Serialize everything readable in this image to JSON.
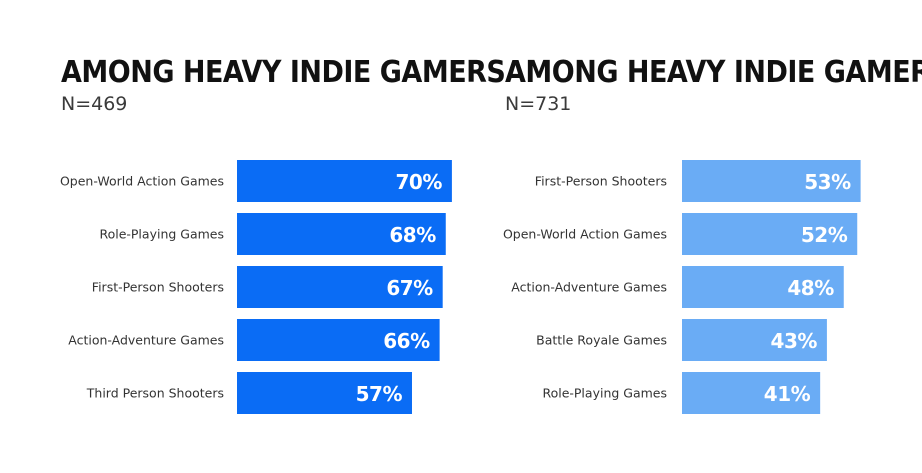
{
  "chart_data": [
    {
      "type": "bar",
      "orientation": "horizontal",
      "title": "AMONG HEAVY INDIE GAMERS",
      "subtitle": "N=469",
      "categories": [
        "Open-World Action Games",
        "Role-Playing Games",
        "First-Person Shooters",
        "Action-Adventure Games",
        "Third Person Shooters"
      ],
      "values": [
        70,
        68,
        67,
        66,
        57
      ],
      "value_labels": [
        "70%",
        "68%",
        "67%",
        "66%",
        "57%"
      ],
      "unit": "%",
      "color": "#0a6cf5",
      "grid": false
    },
    {
      "type": "bar",
      "orientation": "horizontal",
      "title": "AMONG HEAVY INDIE GAMERS",
      "subtitle": "N=731",
      "categories": [
        "First-Person Shooters",
        "Open-World Action Games",
        "Action-Adventure Games",
        "Battle Royale Games",
        "Role-Playing Games"
      ],
      "values": [
        53,
        52,
        48,
        43,
        41
      ],
      "value_labels": [
        "53%",
        "52%",
        "48%",
        "43%",
        "41%"
      ],
      "unit": "%",
      "color": "#6aacf5",
      "grid": false
    }
  ]
}
